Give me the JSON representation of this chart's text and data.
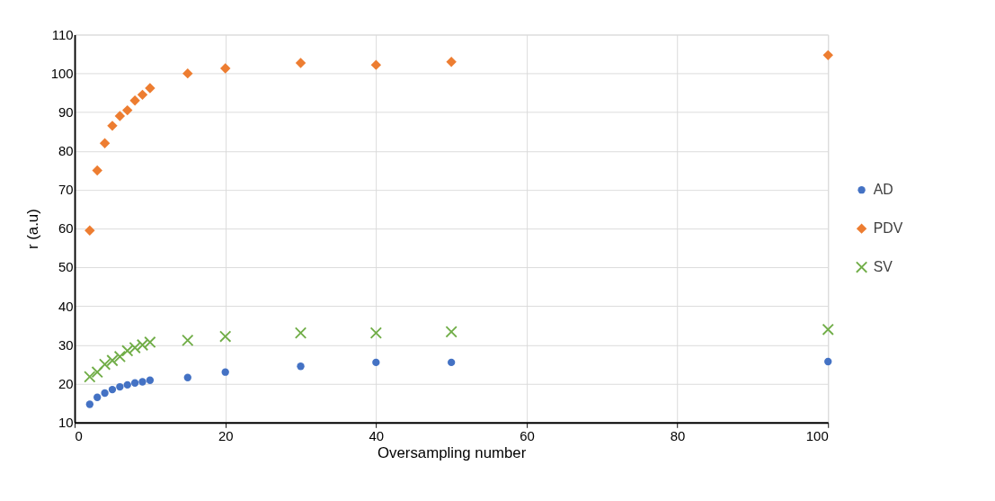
{
  "chart_data": {
    "type": "scatter",
    "xlabel": "Oversampling number",
    "ylabel": "r (a.u)",
    "x": [
      2,
      3,
      4,
      5,
      6,
      7,
      8,
      9,
      10,
      15,
      20,
      30,
      40,
      50,
      100
    ],
    "series": [
      {
        "name": "AD",
        "color": "#4472c4",
        "marker": "circle",
        "values": [
          14.7,
          16.5,
          17.6,
          18.5,
          19.2,
          19.7,
          20.2,
          20.5,
          20.9,
          21.6,
          23,
          24.5,
          25.5,
          25.5,
          25.7
        ]
      },
      {
        "name": "PDV",
        "color": "#ed7d31",
        "marker": "diamond",
        "values": [
          59.5,
          75,
          82,
          86.5,
          89,
          90.5,
          93,
          94.5,
          96.2,
          100,
          101.3,
          102.7,
          102.2,
          103,
          104.7
        ]
      },
      {
        "name": "SV",
        "color": "#70ad47",
        "marker": "cross",
        "values": [
          21.8,
          23,
          25,
          26,
          27,
          28.5,
          29.3,
          30,
          30.7,
          31.2,
          32.2,
          33.1,
          33.1,
          33.4,
          34
        ]
      }
    ],
    "xlim": [
      0,
      100
    ],
    "xticks": [
      0,
      20,
      40,
      60,
      80,
      100
    ],
    "ylim": [
      10,
      110
    ],
    "yticks": [
      10,
      20,
      30,
      40,
      50,
      60,
      70,
      80,
      90,
      100,
      110
    ],
    "grid": true,
    "legend": "right"
  }
}
